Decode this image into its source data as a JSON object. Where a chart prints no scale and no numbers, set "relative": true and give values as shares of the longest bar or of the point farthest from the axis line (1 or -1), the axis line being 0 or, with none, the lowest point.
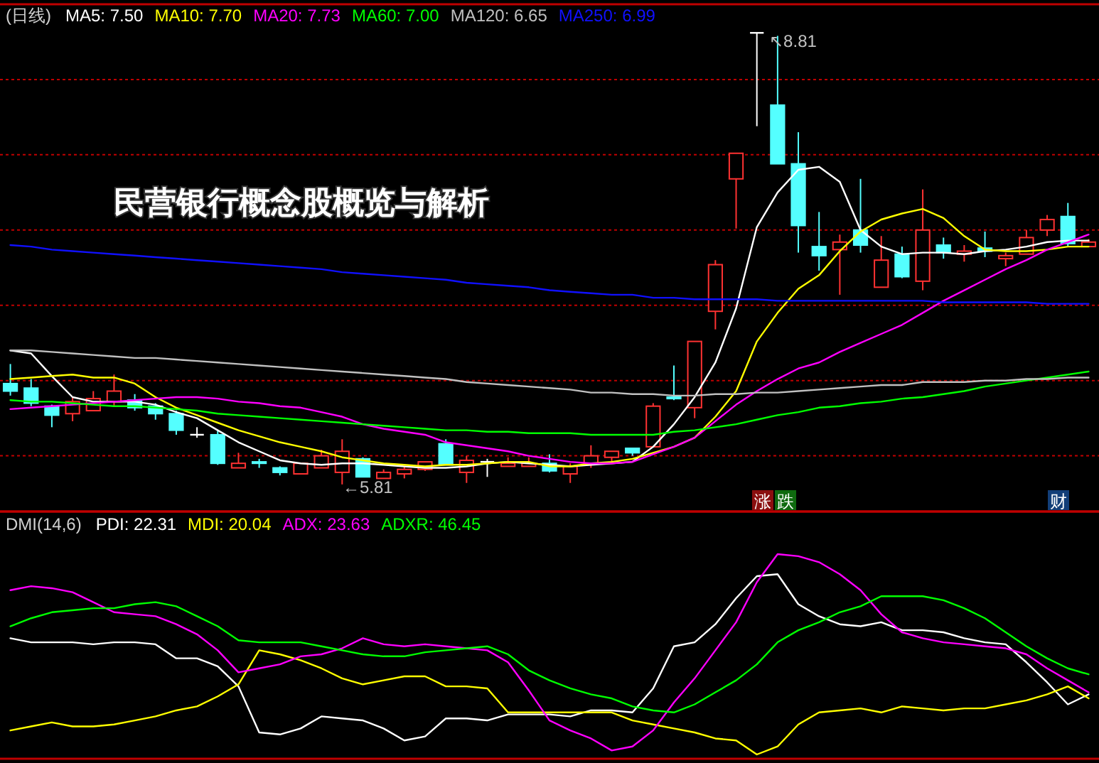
{
  "chart_data": [
    {
      "type": "candlestick",
      "title": "(日线)",
      "categories": [
        null,
        null,
        null,
        null,
        null,
        null,
        null,
        null,
        null,
        null,
        null,
        null,
        null,
        null,
        null,
        null,
        null,
        null,
        null,
        null,
        null,
        null,
        null,
        null,
        null,
        null,
        null,
        null,
        null,
        null,
        null,
        null,
        null,
        null,
        null,
        null,
        null,
        null,
        null,
        null,
        null,
        null,
        null,
        null,
        null,
        null,
        null,
        null,
        null,
        null,
        null,
        null,
        null
      ],
      "ohlc": [
        [
          6.48,
          6.61,
          6.4,
          6.43
        ],
        [
          6.45,
          6.51,
          6.33,
          6.35
        ],
        [
          6.33,
          6.34,
          6.19,
          6.27
        ],
        [
          6.28,
          6.39,
          6.23,
          6.36
        ],
        [
          6.3,
          6.43,
          6.3,
          6.38
        ],
        [
          6.36,
          6.54,
          6.33,
          6.43
        ],
        [
          6.37,
          6.41,
          6.3,
          6.32
        ],
        [
          6.33,
          6.35,
          6.24,
          6.28
        ],
        [
          6.28,
          6.3,
          6.14,
          6.17
        ],
        [
          6.14,
          6.19,
          6.12,
          6.14
        ],
        [
          6.14,
          6.17,
          5.94,
          5.95
        ],
        [
          5.92,
          6.02,
          5.92,
          5.95
        ],
        [
          5.96,
          5.98,
          5.92,
          5.95
        ],
        [
          5.92,
          5.93,
          5.87,
          5.89
        ],
        [
          5.88,
          5.95,
          5.88,
          5.95
        ],
        [
          5.92,
          6.04,
          5.92,
          6.0
        ],
        [
          5.89,
          6.11,
          5.81,
          6.03
        ],
        [
          5.98,
          5.99,
          5.86,
          5.86
        ],
        [
          5.85,
          5.91,
          5.85,
          5.89
        ],
        [
          5.88,
          5.93,
          5.85,
          5.91
        ],
        [
          5.91,
          5.96,
          5.9,
          5.96
        ],
        [
          6.08,
          6.11,
          5.94,
          5.94
        ],
        [
          5.89,
          6.0,
          5.82,
          5.97
        ],
        [
          5.96,
          5.98,
          5.86,
          5.96
        ],
        [
          5.93,
          5.99,
          5.93,
          5.95
        ],
        [
          5.93,
          5.99,
          5.93,
          5.95
        ],
        [
          5.95,
          6.01,
          5.89,
          5.9
        ],
        [
          5.88,
          5.95,
          5.82,
          5.93
        ],
        [
          5.95,
          6.07,
          5.92,
          6.0
        ],
        [
          5.99,
          6.03,
          5.96,
          6.03
        ],
        [
          6.05,
          6.05,
          6.0,
          6.02
        ],
        [
          6.06,
          6.35,
          6.06,
          6.33
        ],
        [
          6.39,
          6.6,
          6.37,
          6.38
        ],
        [
          6.32,
          6.76,
          6.25,
          6.76
        ],
        [
          6.96,
          7.3,
          6.84,
          7.27
        ],
        [
          7.84,
          8.01,
          7.51,
          8.01
        ],
        [
          8.81,
          8.81,
          8.19,
          8.81
        ],
        [
          8.33,
          8.79,
          7.94,
          7.94
        ],
        [
          7.94,
          8.15,
          7.35,
          7.53
        ],
        [
          7.39,
          7.62,
          7.23,
          7.33
        ],
        [
          7.37,
          7.47,
          7.07,
          7.42
        ],
        [
          7.5,
          7.84,
          7.35,
          7.4
        ],
        [
          7.12,
          7.46,
          7.12,
          7.3
        ],
        [
          7.34,
          7.39,
          7.18,
          7.19
        ],
        [
          7.16,
          7.77,
          7.1,
          7.5
        ],
        [
          7.4,
          7.45,
          7.31,
          7.35
        ],
        [
          7.34,
          7.4,
          7.29,
          7.36
        ],
        [
          7.38,
          7.49,
          7.32,
          7.36
        ],
        [
          7.31,
          7.35,
          7.26,
          7.33
        ],
        [
          7.34,
          7.5,
          7.34,
          7.45
        ],
        [
          7.5,
          7.6,
          7.46,
          7.57
        ],
        [
          7.59,
          7.68,
          7.39,
          7.41
        ],
        [
          7.39,
          7.44,
          7.39,
          7.42
        ]
      ],
      "colors": [
        "#54ffff",
        "#54ffff",
        "#54ffff",
        "#ff3232",
        "#ff3232",
        "#ff3232",
        "#54ffff",
        "#54ffff",
        "#54ffff",
        "#ffffff",
        "#54ffff",
        "#ff3232",
        "#54ffff",
        "#54ffff",
        "#ff3232",
        "#ff3232",
        "#ff3232",
        "#54ffff",
        "#ff3232",
        "#ff3232",
        "#ff3232",
        "#54ffff",
        "#ff3232",
        "#ffffff",
        "#ff3232",
        "#ff3232",
        "#54ffff",
        "#ff3232",
        "#ff3232",
        "#ff3232",
        "#54ffff",
        "#ff3232",
        "#54ffff",
        "#ff3232",
        "#ff3232",
        "#ff3232",
        "#ffffff",
        "#54ffff",
        "#54ffff",
        "#54ffff",
        "#ff3232",
        "#54ffff",
        "#ff3232",
        "#54ffff",
        "#ff3232",
        "#54ffff",
        "#ff3232",
        "#54ffff",
        "#ff3232",
        "#ff3232",
        "#ff3232",
        "#54ffff",
        "#ff3232"
      ],
      "series": [
        {
          "type": "line",
          "name": "MA5: 7.50",
          "color": "#ffffff",
          "values": [
            6.7,
            6.68,
            6.53,
            6.39,
            6.36,
            6.36,
            6.36,
            6.34,
            6.29,
            6.25,
            6.17,
            6.09,
            6.03,
            5.97,
            5.95,
            5.94,
            5.95,
            5.95,
            5.94,
            5.93,
            5.92,
            5.92,
            5.93,
            5.95,
            5.96,
            5.95,
            5.94,
            5.93,
            5.94,
            5.95,
            5.96,
            6.06,
            6.21,
            6.39,
            6.62,
            6.98,
            7.52,
            7.75,
            7.9,
            7.92,
            7.82,
            7.5,
            7.39,
            7.34,
            7.35,
            7.35,
            7.34,
            7.36,
            7.37,
            7.39,
            7.42,
            7.43,
            7.43
          ]
        },
        {
          "type": "line",
          "name": "MA10: 7.70",
          "color": "#ffff00",
          "values": [
            6.51,
            6.52,
            6.53,
            6.54,
            6.52,
            6.52,
            6.48,
            6.39,
            6.32,
            6.27,
            6.22,
            6.17,
            6.13,
            6.09,
            6.06,
            6.03,
            5.99,
            5.97,
            5.95,
            5.94,
            5.93,
            5.94,
            5.94,
            5.95,
            5.96,
            5.96,
            5.93,
            5.93,
            5.95,
            5.96,
            5.98,
            6.02,
            6.06,
            6.12,
            6.26,
            6.43,
            6.76,
            6.95,
            7.11,
            7.2,
            7.36,
            7.49,
            7.57,
            7.61,
            7.64,
            7.58,
            7.46,
            7.37,
            7.36,
            7.36,
            7.37,
            7.39,
            7.39
          ]
        },
        {
          "type": "line",
          "name": "MA20: 7.73",
          "color": "#ff00ff",
          "values": [
            6.31,
            6.32,
            6.33,
            6.34,
            6.35,
            6.36,
            6.37,
            6.38,
            6.39,
            6.39,
            6.38,
            6.36,
            6.35,
            6.33,
            6.32,
            6.29,
            6.26,
            6.21,
            6.18,
            6.16,
            6.14,
            6.09,
            6.07,
            6.05,
            6.03,
            6.0,
            5.98,
            5.96,
            5.95,
            5.95,
            5.96,
            6.01,
            6.06,
            6.12,
            6.23,
            6.34,
            6.43,
            6.51,
            6.58,
            6.62,
            6.69,
            6.75,
            6.81,
            6.87,
            6.95,
            7.03,
            7.1,
            7.17,
            7.24,
            7.3,
            7.37,
            7.42,
            7.47
          ]
        },
        {
          "type": "line",
          "name": "MA60: 7.00",
          "color": "#00ff00",
          "values": [
            6.37,
            6.36,
            6.36,
            6.35,
            6.34,
            6.33,
            6.33,
            6.32,
            6.31,
            6.3,
            6.28,
            6.27,
            6.26,
            6.25,
            6.24,
            6.23,
            6.22,
            6.21,
            6.2,
            6.19,
            6.18,
            6.17,
            6.17,
            6.16,
            6.16,
            6.15,
            6.15,
            6.15,
            6.14,
            6.14,
            6.14,
            6.14,
            6.16,
            6.17,
            6.19,
            6.21,
            6.24,
            6.27,
            6.29,
            6.32,
            6.33,
            6.35,
            6.36,
            6.38,
            6.39,
            6.41,
            6.43,
            6.46,
            6.48,
            6.5,
            6.52,
            6.54,
            6.56
          ]
        },
        {
          "type": "line",
          "name": "MA120: 6.65",
          "color": "#c0c0c0",
          "values": [
            6.7,
            6.7,
            6.69,
            6.68,
            6.67,
            6.66,
            6.65,
            6.65,
            6.64,
            6.63,
            6.62,
            6.61,
            6.6,
            6.59,
            6.58,
            6.57,
            6.56,
            6.55,
            6.54,
            6.53,
            6.52,
            6.51,
            6.49,
            6.48,
            6.47,
            6.46,
            6.45,
            6.44,
            6.42,
            6.42,
            6.41,
            6.41,
            6.4,
            6.4,
            6.41,
            6.41,
            6.42,
            6.42,
            6.43,
            6.44,
            6.45,
            6.46,
            6.47,
            6.47,
            6.49,
            6.49,
            6.49,
            6.5,
            6.5,
            6.51,
            6.51,
            6.52,
            6.52
          ]
        },
        {
          "type": "line",
          "name": "MA250: 6.99",
          "color": "#1010ff",
          "values": [
            7.4,
            7.39,
            7.37,
            7.36,
            7.35,
            7.34,
            7.33,
            7.32,
            7.31,
            7.3,
            7.29,
            7.28,
            7.27,
            7.26,
            7.25,
            7.24,
            7.22,
            7.21,
            7.2,
            7.19,
            7.18,
            7.17,
            7.15,
            7.14,
            7.13,
            7.12,
            7.1,
            7.09,
            7.08,
            7.07,
            7.07,
            7.05,
            7.05,
            7.04,
            7.04,
            7.04,
            7.04,
            7.03,
            7.03,
            7.03,
            7.03,
            7.03,
            7.03,
            7.03,
            7.03,
            7.02,
            7.02,
            7.02,
            7.02,
            7.02,
            7.01,
            7.01,
            7.01
          ]
        }
      ],
      "ylim": [
        5.63,
        9.0
      ],
      "yticks": [
        {
          "value": 6.0,
          "label": null
        },
        {
          "value": 6.5,
          "label": null
        },
        {
          "value": 7.0,
          "label": null
        },
        {
          "value": 7.5,
          "label": null
        },
        {
          "value": 8.0,
          "label": null
        },
        {
          "value": 8.5,
          "label": null
        }
      ],
      "grid": "y",
      "legend": "top left",
      "annotations": [
        "民营银行概念股概览与解析",
        "↖8.81",
        "←5.81",
        "涨",
        "跌",
        "财"
      ]
    },
    {
      "type": "line",
      "title": "DMI(14,6)",
      "relative": true,
      "categories": [
        null,
        null,
        null,
        null,
        null,
        null,
        null,
        null,
        null,
        null,
        null,
        null,
        null,
        null,
        null,
        null,
        null,
        null,
        null,
        null,
        null,
        null,
        null,
        null,
        null,
        null,
        null,
        null,
        null,
        null,
        null,
        null,
        null,
        null,
        null,
        null,
        null,
        null,
        null,
        null,
        null,
        null,
        null,
        null,
        null,
        null,
        null,
        null,
        null,
        null,
        null,
        null,
        null
      ],
      "series": [
        {
          "name": "PDI: 22.31",
          "color": "#ffffff",
          "values": [
            0.58,
            0.56,
            0.56,
            0.56,
            0.55,
            0.56,
            0.56,
            0.55,
            0.48,
            0.48,
            0.44,
            0.34,
            0.11,
            0.1,
            0.13,
            0.19,
            0.18,
            0.17,
            0.13,
            0.07,
            0.09,
            0.18,
            0.18,
            0.17,
            0.2,
            0.2,
            0.2,
            0.19,
            0.22,
            0.22,
            0.21,
            0.33,
            0.54,
            0.56,
            0.65,
            0.78,
            0.89,
            0.9,
            0.75,
            0.69,
            0.65,
            0.64,
            0.66,
            0.62,
            0.62,
            0.61,
            0.58,
            0.56,
            0.55,
            0.46,
            0.36,
            0.25,
            0.3
          ]
        },
        {
          "name": "MDI: 20.04",
          "color": "#ffff00",
          "values": [
            0.12,
            0.14,
            0.16,
            0.14,
            0.14,
            0.15,
            0.17,
            0.19,
            0.22,
            0.24,
            0.29,
            0.35,
            0.52,
            0.5,
            0.47,
            0.43,
            0.38,
            0.35,
            0.37,
            0.39,
            0.39,
            0.34,
            0.34,
            0.33,
            0.21,
            0.21,
            0.21,
            0.21,
            0.21,
            0.21,
            0.17,
            0.15,
            0.13,
            0.11,
            0.08,
            0.07,
            0.0,
            0.04,
            0.15,
            0.21,
            0.22,
            0.23,
            0.21,
            0.24,
            0.23,
            0.22,
            0.23,
            0.23,
            0.25,
            0.27,
            0.3,
            0.34,
            0.28
          ]
        },
        {
          "name": "ADX: 23.63",
          "color": "#ff00ff",
          "values": [
            0.82,
            0.84,
            0.83,
            0.81,
            0.76,
            0.71,
            0.7,
            0.69,
            0.65,
            0.6,
            0.52,
            0.41,
            0.43,
            0.45,
            0.49,
            0.5,
            0.53,
            0.58,
            0.55,
            0.54,
            0.55,
            0.54,
            0.53,
            0.52,
            0.46,
            0.32,
            0.17,
            0.12,
            0.08,
            0.02,
            0.04,
            0.12,
            0.26,
            0.38,
            0.52,
            0.66,
            0.86,
            1.0,
            0.99,
            0.96,
            0.9,
            0.82,
            0.7,
            0.61,
            0.58,
            0.56,
            0.55,
            0.54,
            0.53,
            0.5,
            0.43,
            0.37,
            0.31
          ]
        },
        {
          "name": "ADXR: 46.45",
          "color": "#00ff00",
          "values": [
            0.64,
            0.68,
            0.71,
            0.72,
            0.73,
            0.73,
            0.75,
            0.76,
            0.74,
            0.69,
            0.64,
            0.57,
            0.56,
            0.56,
            0.56,
            0.54,
            0.52,
            0.5,
            0.49,
            0.49,
            0.51,
            0.52,
            0.53,
            0.54,
            0.5,
            0.42,
            0.37,
            0.33,
            0.3,
            0.28,
            0.24,
            0.22,
            0.21,
            0.25,
            0.31,
            0.37,
            0.45,
            0.56,
            0.62,
            0.66,
            0.71,
            0.74,
            0.79,
            0.79,
            0.79,
            0.77,
            0.73,
            0.68,
            0.61,
            0.54,
            0.48,
            0.43,
            0.4
          ]
        }
      ],
      "legend": "top left"
    }
  ]
}
